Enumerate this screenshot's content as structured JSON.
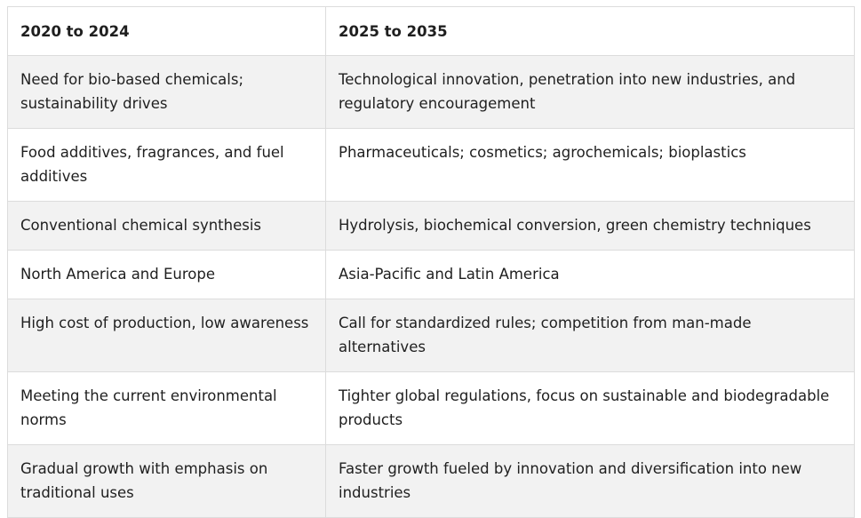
{
  "table": {
    "headers": [
      "2020 to 2024",
      "2025 to 2035"
    ],
    "rows": [
      [
        "Need for bio-based chemicals; sustainability drives",
        "Technological innovation, penetration into new industries, and regulatory encouragement"
      ],
      [
        "Food additives, fragrances, and fuel additives",
        "Pharmaceuticals; cosmetics; agrochemicals; bioplastics"
      ],
      [
        "Conventional chemical synthesis",
        "Hydrolysis, biochemical conversion, green chemistry techniques"
      ],
      [
        "North America and Europe",
        "Asia-Pacific and Latin America"
      ],
      [
        "High cost of production, low awareness",
        "Call for standardized rules; competition from man-made alternatives"
      ],
      [
        "Meeting the current environmental norms",
        "Tighter global regulations, focus on sustainable and biodegradable products"
      ],
      [
        "Gradual growth with emphasis on traditional uses",
        "Faster growth fueled by innovation and diversification into new industries"
      ]
    ]
  }
}
